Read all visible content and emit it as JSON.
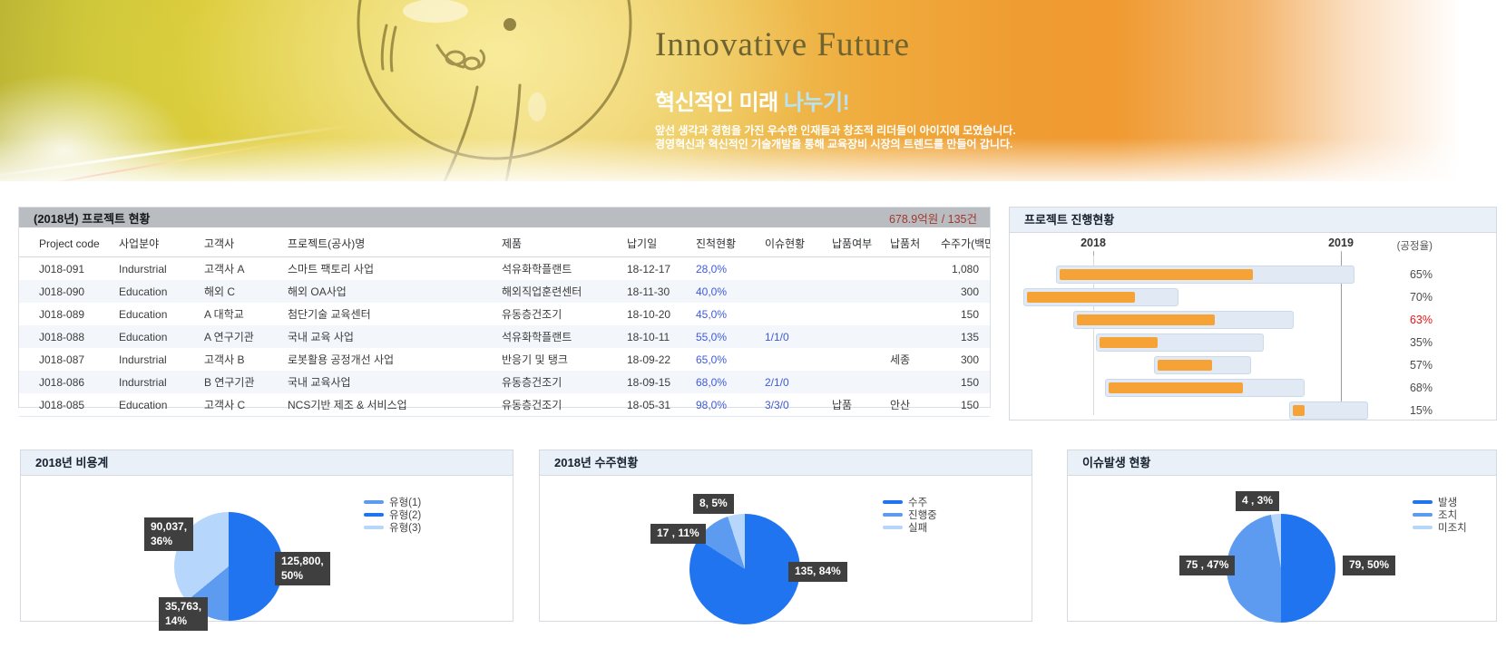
{
  "banner": {
    "title": "Innovative Future",
    "subtitle_white": "혁신적인 미래",
    "subtitle_accent": "나누기!",
    "desc_line1": "앞선 생각과 경험을 가진 우수한 인재들과 창조적 리더들이 아이지에 모였습니다.",
    "desc_line2": "경영혁신과 혁신적인 기술개발을 통해 교육장비 시장의 트렌드를 만들어 갑니다."
  },
  "project_table": {
    "title": "(2018년) 프로젝트 현황",
    "summary": "678.9억원 / 135건",
    "columns": [
      "Project code",
      "사업분야",
      "고객사",
      "프로젝트(공사)명",
      "제품",
      "납기일",
      "진척현황",
      "이슈현황",
      "납품여부",
      "납품처",
      "수주가(백만)"
    ],
    "rows": [
      [
        "J018-091",
        "Indurstrial",
        "고객사 A",
        "스마트 팩토리 사업",
        "석유화학플랜트",
        "18-12-17",
        "28,0%",
        "",
        "",
        "",
        "1,080"
      ],
      [
        "J018-090",
        "Education",
        "해외 C",
        "해외 OA사업",
        "해외직업훈련센터",
        "18-11-30",
        "40,0%",
        "",
        "",
        "",
        "300"
      ],
      [
        "J018-089",
        "Education",
        "A 대학교",
        "첨단기술 교육센터",
        "유동층건조기",
        "18-10-20",
        "45,0%",
        "",
        "",
        "",
        "150"
      ],
      [
        "J018-088",
        "Education",
        "A 연구기관",
        "국내 교육 사업",
        "석유화학플랜트",
        "18-10-11",
        "55,0%",
        "1/1/0",
        "",
        "",
        "135"
      ],
      [
        "J018-087",
        "Indurstrial",
        "고객사 B",
        "로봇활용 공정개선 사업",
        "반응기 및 탱크",
        "18-09-22",
        "65,0%",
        "",
        "",
        "세종",
        "300"
      ],
      [
        "J018-086",
        "Indurstrial",
        "B 연구기관",
        "국내 교육사업",
        "유동층건조기",
        "18-09-15",
        "68,0%",
        "2/1/0",
        "",
        "",
        "150"
      ],
      [
        "J018-085",
        "Education",
        "고객사 C",
        "NCS기반 제조 & 서비스업",
        "유동층건조기",
        "18-05-31",
        "98,0%",
        "3/3/0",
        "납품",
        "안산",
        "150"
      ]
    ]
  },
  "gantt": {
    "title": "프로젝트 진행현황",
    "axis_start": "2018",
    "axis_end": "2019",
    "axis_unit": "(공정율)",
    "chart_data": {
      "type": "gantt-bar",
      "note": "start/span are % of the 2018-2019 timeline plot; progress is the orange fill % of each track",
      "rows": [
        {
          "start": 10.8,
          "span": 82.2,
          "progress": 65,
          "label": "65%",
          "alert": false
        },
        {
          "start": 1.8,
          "span": 42.8,
          "progress": 70,
          "label": "70%",
          "alert": false
        },
        {
          "start": 15.5,
          "span": 60.8,
          "progress": 63,
          "label": "63%",
          "alert": true
        },
        {
          "start": 21.8,
          "span": 46.2,
          "progress": 35,
          "label": "35%",
          "alert": false
        },
        {
          "start": 37.8,
          "span": 26.8,
          "progress": 57,
          "label": "57%",
          "alert": false
        },
        {
          "start": 24.2,
          "span": 55.0,
          "progress": 68,
          "label": "68%",
          "alert": false
        },
        {
          "start": 75.0,
          "span": 21.8,
          "progress": 15,
          "label": "15%",
          "alert": false
        }
      ],
      "year_tick_pos": [
        19,
        89.3
      ]
    }
  },
  "pies": [
    {
      "title": "2018년 비용계",
      "chart_data": {
        "type": "pie",
        "slices": [
          {
            "name": "유형(2)",
            "value": 125800,
            "pct": 50,
            "color": "#2174f0",
            "label": "125,800,\n50%"
          },
          {
            "name": "유형(1)",
            "value": 35763,
            "pct": 14,
            "color": "#5d9bf0",
            "label": "35,763,\n14%"
          },
          {
            "name": "유형(3)",
            "value": 90037,
            "pct": 36,
            "color": "#b6d7fb",
            "label": "90,037,\n36%"
          }
        ]
      },
      "legend": [
        {
          "name": "유형(1)",
          "color": "#5d9bf0"
        },
        {
          "name": "유형(2)",
          "color": "#2174f0"
        },
        {
          "name": "유형(3)",
          "color": "#b6d7fb"
        }
      ]
    },
    {
      "title": "2018년 수주현황",
      "chart_data": {
        "type": "pie",
        "slices": [
          {
            "name": "수주",
            "value": 135,
            "pct": 84,
            "color": "#2174f0",
            "label": "135, 84%"
          },
          {
            "name": "진행중",
            "value": 17,
            "pct": 11,
            "color": "#5d9bf0",
            "label": "17 , 11%"
          },
          {
            "name": "실패",
            "value": 8,
            "pct": 5,
            "color": "#b6d7fb",
            "label": "8, 5%"
          }
        ]
      },
      "legend": [
        {
          "name": "수주",
          "color": "#2174f0"
        },
        {
          "name": "진행중",
          "color": "#5d9bf0"
        },
        {
          "name": "실패",
          "color": "#b6d7fb"
        }
      ]
    },
    {
      "title": "이슈발생 현황",
      "chart_data": {
        "type": "pie",
        "slices": [
          {
            "name": "발생",
            "value": 79,
            "pct": 50,
            "color": "#2174f0",
            "label": "79, 50%"
          },
          {
            "name": "조치",
            "value": 75,
            "pct": 47,
            "color": "#5d9bf0",
            "label": "75 , 47%"
          },
          {
            "name": "미조치",
            "value": 4,
            "pct": 3,
            "color": "#b6d7fb",
            "label": "4 , 3%"
          }
        ]
      },
      "legend": [
        {
          "name": "발생",
          "color": "#2174f0"
        },
        {
          "name": "조치",
          "color": "#5d9bf0"
        },
        {
          "name": "미조치",
          "color": "#b6d7fb"
        }
      ]
    }
  ],
  "colors": {
    "gantt_bar_orange": "#f5a336",
    "gantt_track_blue": "#e0e9f4",
    "link_blue": "#3f5ad9",
    "alert_red": "#e81515",
    "summary_red": "#a1392a",
    "pie_bright_blue": "#2174f0",
    "pie_medium_blue": "#5d9bf0",
    "pie_pale_blue": "#b6d7fb",
    "data_label_bg": "#3f3f3f"
  }
}
